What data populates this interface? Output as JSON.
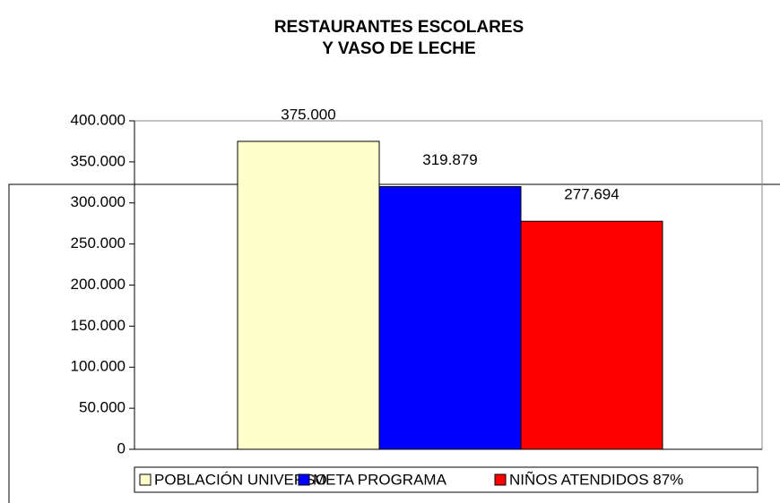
{
  "chart_data": {
    "type": "bar",
    "title": [
      "RESTAURANTES ESCOLARES",
      "Y VASO DE LECHE"
    ],
    "categories": [
      null
    ],
    "series": [
      {
        "name": "POBLACIÓN UNIVERSO",
        "color": "#ffffcc",
        "values": [
          375000
        ],
        "value_labels": [
          "375.000"
        ]
      },
      {
        "name": "META PROGRAMA",
        "color": "#0000ff",
        "values": [
          319879
        ],
        "value_labels": [
          "319.879"
        ]
      },
      {
        "name": "NIÑOS ATENDIDOS 87%",
        "color": "#ff0000",
        "values": [
          277694
        ],
        "value_labels": [
          "277.694"
        ]
      }
    ],
    "ylim": [
      0,
      400000
    ],
    "yticks": [
      0,
      {
        "value": 50000,
        "label": "50.000"
      },
      {
        "value": 100000,
        "label": "100.000"
      },
      {
        "value": 150000,
        "label": "150.000"
      },
      {
        "value": 200000,
        "label": "200.000"
      },
      {
        "value": 250000,
        "label": "250.000"
      },
      {
        "value": 300000,
        "label": "300.000"
      },
      {
        "value": 350000,
        "label": "350.000"
      },
      {
        "value": 400000,
        "label": "400.000"
      }
    ],
    "legend": "bottom"
  }
}
